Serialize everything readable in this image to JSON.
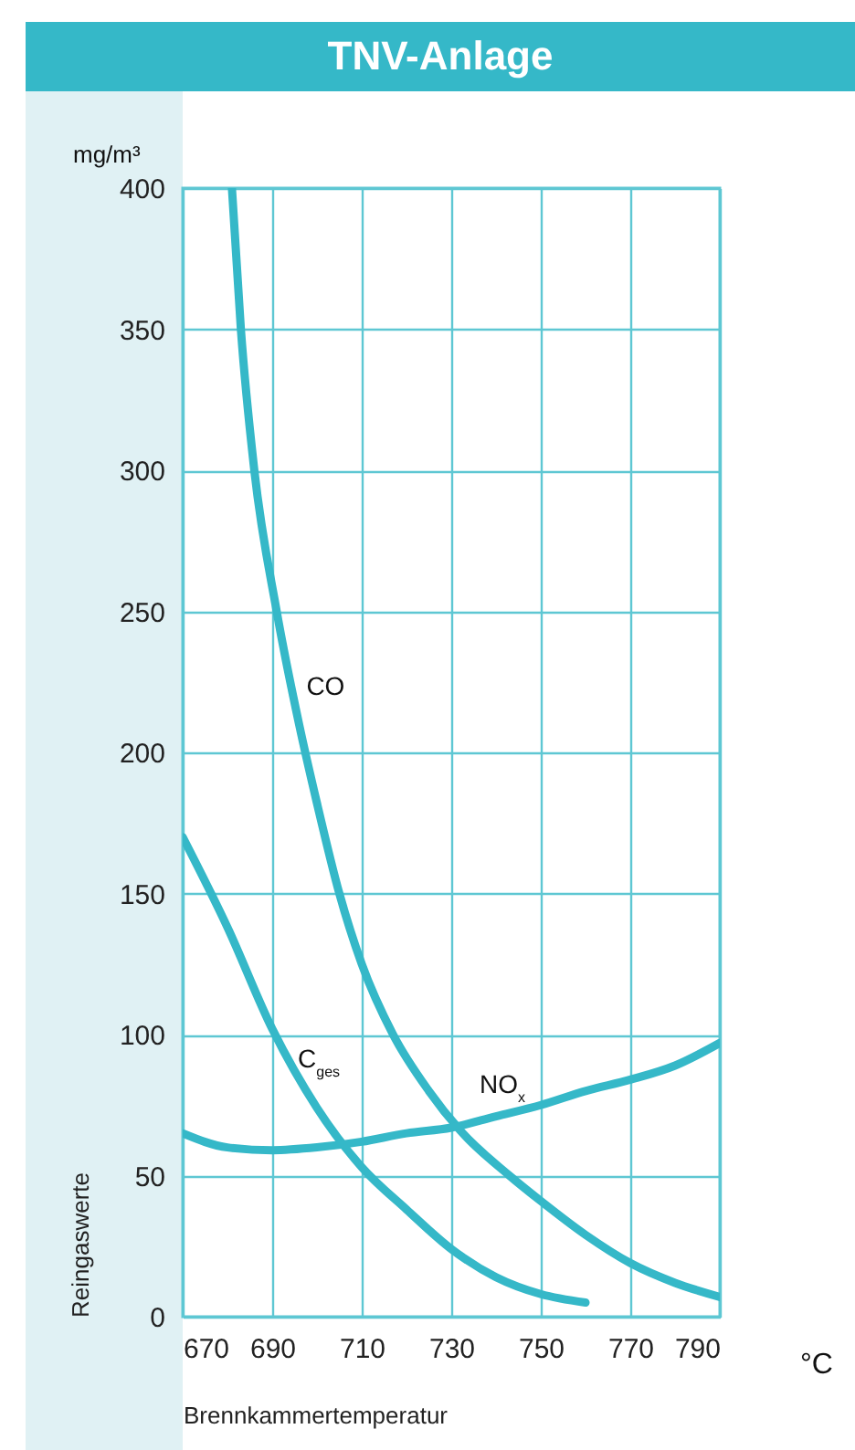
{
  "chart_data": {
    "type": "line",
    "title": "TNV-Anlage",
    "xlabel": "Brennkammertemperatur",
    "ylabel": "Reingaswerte",
    "annotations": [
      "mg/m³",
      "°C"
    ],
    "xlim": [
      670,
      790
    ],
    "xticks": [
      670,
      690,
      710,
      730,
      750,
      770,
      790
    ],
    "ylim": [
      0,
      400
    ],
    "yticks": [
      0,
      50,
      100,
      150,
      200,
      250,
      300,
      350,
      400
    ],
    "grid": true,
    "series": [
      {
        "name": "CO",
        "color": "#35b8c8",
        "x": [
          681,
          683,
          686,
          691,
          696,
          700,
          705,
          710,
          717,
          725,
          732,
          743,
          750,
          760,
          770,
          780,
          790
        ],
        "values": [
          400,
          350,
          300,
          250,
          210,
          182,
          150,
          125,
          100,
          80,
          66,
          50,
          41,
          29,
          19,
          12,
          7
        ]
      },
      {
        "name": "C$_{ges}$",
        "color": "#35b8c8",
        "x": [
          670,
          680,
          690,
          700,
          710,
          720,
          730,
          740,
          750,
          760
        ],
        "values": [
          170,
          138,
          102,
          74,
          53,
          38,
          24,
          14,
          8,
          5
        ]
      },
      {
        "name": "NO$_{x}$",
        "color": "#35b8c8",
        "x": [
          670,
          680,
          690,
          700,
          710,
          720,
          730,
          740,
          750,
          760,
          770,
          780,
          790
        ],
        "values": [
          65,
          60,
          59,
          60,
          62,
          65,
          67,
          71,
          75,
          80,
          84,
          89,
          97
        ]
      }
    ]
  }
}
